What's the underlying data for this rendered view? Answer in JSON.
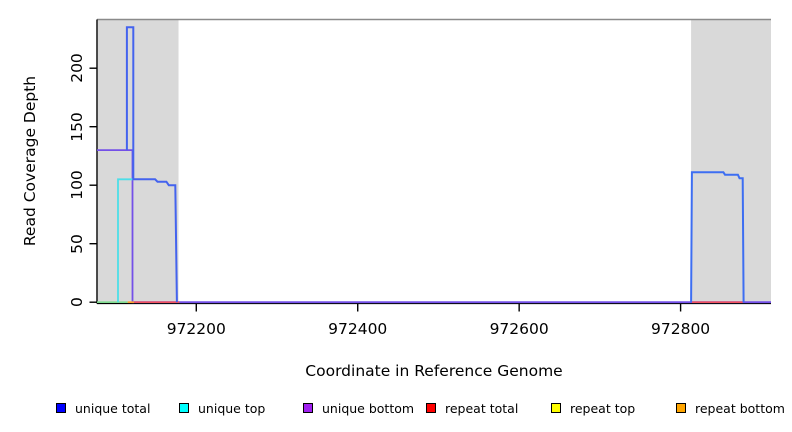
{
  "figure": {
    "kind": "read coverage depth plot",
    "background": "#ffffff",
    "band_note": "gray shaded bands mark repeat regions at both ends of the plotted interval"
  },
  "chart_data": {
    "type": "line",
    "title": "",
    "xlabel": "Coordinate in Reference Genome",
    "ylabel": "Read Coverage Depth",
    "xlim": [
      972077,
      972912
    ],
    "ylim": [
      0,
      242
    ],
    "x_ticks": [
      972200,
      972400,
      972600,
      972800
    ],
    "y_ticks": [
      0,
      50,
      100,
      150,
      200
    ],
    "grid": false,
    "legend_position": "bottom",
    "shade_color": "#d9d9d9",
    "axis_color": "#000000",
    "top_border_color": "#8a8a8a",
    "shaded_regions": [
      {
        "x1": 972078,
        "x2": 972178
      },
      {
        "x1": 972813,
        "x2": 972912
      }
    ],
    "legend": [
      {
        "label": "unique total",
        "color": "#0000ff"
      },
      {
        "label": "unique top",
        "color": "#00ffff"
      },
      {
        "label": "unique bottom",
        "color": "#a020f0"
      },
      {
        "label": "repeat total",
        "color": "#ff0000"
      },
      {
        "label": "repeat top",
        "color": "#ffff00"
      },
      {
        "label": "repeat bottom",
        "color": "#ffa500"
      }
    ],
    "series": [
      {
        "name": "unique bottom",
        "color": "#7450e8",
        "width": 1.8,
        "points": [
          [
            972077,
            130
          ],
          [
            972121,
            130
          ],
          [
            972121,
            0
          ],
          [
            972912,
            0
          ]
        ]
      },
      {
        "name": "repeat top + unique top overlap baseline",
        "color": "#7fdc8f",
        "width": 1.7,
        "points": [
          [
            972077,
            0
          ],
          [
            972115,
            0
          ]
        ]
      },
      {
        "name": "repeat bottom / overlap baseline",
        "color": "#ffa02f",
        "width": 1.7,
        "points": [
          [
            972115,
            0
          ],
          [
            972123,
            0
          ]
        ]
      },
      {
        "name": "repeat total (left repeat region)",
        "color": "#f2525f",
        "width": 1.7,
        "points": [
          [
            972123,
            0
          ],
          [
            972179,
            0
          ]
        ]
      },
      {
        "name": "repeat total (right repeat region)",
        "color": "#f2525f",
        "width": 1.7,
        "points": [
          [
            972814,
            0
          ],
          [
            972877,
            0
          ]
        ]
      },
      {
        "name": "unique top",
        "color": "#4ddee8",
        "width": 1.8,
        "points": [
          [
            972103,
            0
          ],
          [
            972103,
            105
          ],
          [
            972122,
            105
          ]
        ]
      },
      {
        "name": "unique total (left block)",
        "color": "#4463ee",
        "width": 2,
        "points": [
          [
            972114,
            130
          ],
          [
            972114,
            235
          ],
          [
            972122,
            235
          ],
          [
            972122,
            105
          ],
          [
            972149,
            105
          ],
          [
            972152,
            103
          ],
          [
            972163,
            103
          ],
          [
            972166,
            100
          ],
          [
            972174,
            100
          ],
          [
            972176,
            0
          ]
        ]
      },
      {
        "name": "unique total (right block)",
        "color": "#3d6ef2",
        "width": 2,
        "points": [
          [
            972813,
            0
          ],
          [
            972814,
            111
          ],
          [
            972853,
            111
          ],
          [
            972855,
            109
          ],
          [
            972871,
            109
          ],
          [
            972873,
            106
          ],
          [
            972877,
            106
          ],
          [
            972878,
            0
          ]
        ]
      }
    ]
  }
}
